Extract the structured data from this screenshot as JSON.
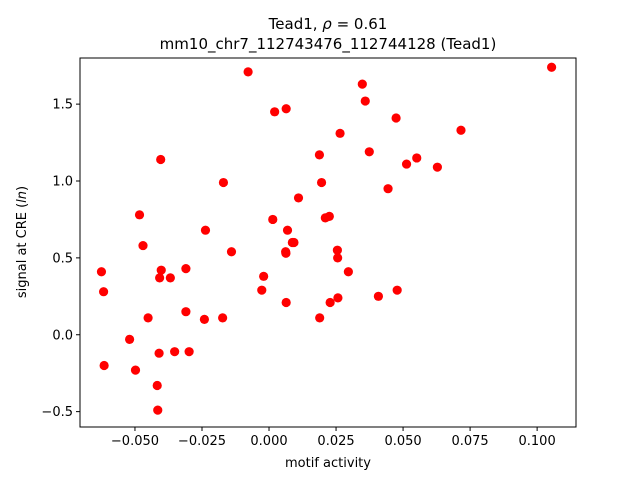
{
  "chart_data": {
    "type": "scatter",
    "title_line1_prefix": "Tead1, ",
    "title_line1_rho": "ρ",
    "title_line1_suffix": " = 0.61",
    "title_line2": "mm10_chr7_112743476_112744128 (Tead1)",
    "xlabel": "motif activity",
    "ylabel_prefix": "signal at CRE (",
    "ylabel_italic": "ln",
    "ylabel_suffix": ")",
    "xlim": [
      -0.0705,
      0.1145
    ],
    "ylim": [
      -0.6,
      1.8
    ],
    "xticks": [
      -0.05,
      -0.025,
      0.0,
      0.025,
      0.05,
      0.075,
      0.1
    ],
    "xtick_labels": [
      "−0.050",
      "−0.025",
      "0.000",
      "0.025",
      "0.050",
      "0.075",
      "0.100"
    ],
    "yticks": [
      -0.5,
      0.0,
      0.5,
      1.0,
      1.5
    ],
    "ytick_labels": [
      "−0.5",
      "0.0",
      "0.5",
      "1.0",
      "1.5"
    ],
    "marker_color": "#ff0000",
    "grid": false,
    "points": [
      {
        "x": 0.1054,
        "y": 1.74
      },
      {
        "x": -0.0078,
        "y": 1.71
      },
      {
        "x": 0.0348,
        "y": 1.63
      },
      {
        "x": 0.0359,
        "y": 1.52
      },
      {
        "x": 0.0021,
        "y": 1.45
      },
      {
        "x": 0.0064,
        "y": 1.47
      },
      {
        "x": 0.0474,
        "y": 1.41
      },
      {
        "x": 0.0716,
        "y": 1.33
      },
      {
        "x": 0.0265,
        "y": 1.31
      },
      {
        "x": 0.0374,
        "y": 1.19
      },
      {
        "x": 0.0188,
        "y": 1.17
      },
      {
        "x": 0.0551,
        "y": 1.15
      },
      {
        "x": -0.0404,
        "y": 1.14
      },
      {
        "x": 0.0513,
        "y": 1.11
      },
      {
        "x": 0.0628,
        "y": 1.09
      },
      {
        "x": -0.017,
        "y": 0.99
      },
      {
        "x": 0.0196,
        "y": 0.99
      },
      {
        "x": 0.0444,
        "y": 0.95
      },
      {
        "x": 0.011,
        "y": 0.89
      },
      {
        "x": -0.0483,
        "y": 0.78
      },
      {
        "x": 0.0225,
        "y": 0.77
      },
      {
        "x": 0.021,
        "y": 0.76
      },
      {
        "x": 0.0014,
        "y": 0.75
      },
      {
        "x": -0.0237,
        "y": 0.68
      },
      {
        "x": 0.0069,
        "y": 0.68
      },
      {
        "x": 0.0087,
        "y": 0.6
      },
      {
        "x": 0.0093,
        "y": 0.6
      },
      {
        "x": -0.047,
        "y": 0.58
      },
      {
        "x": 0.0255,
        "y": 0.55
      },
      {
        "x": -0.014,
        "y": 0.54
      },
      {
        "x": 0.0062,
        "y": 0.54
      },
      {
        "x": 0.0063,
        "y": 0.53
      },
      {
        "x": 0.0256,
        "y": 0.5
      },
      {
        "x": -0.031,
        "y": 0.43
      },
      {
        "x": -0.0402,
        "y": 0.42
      },
      {
        "x": 0.0296,
        "y": 0.41
      },
      {
        "x": -0.0625,
        "y": 0.41
      },
      {
        "x": -0.002,
        "y": 0.38
      },
      {
        "x": -0.0408,
        "y": 0.37
      },
      {
        "x": -0.0368,
        "y": 0.37
      },
      {
        "x": -0.0027,
        "y": 0.29
      },
      {
        "x": 0.0478,
        "y": 0.29
      },
      {
        "x": -0.0617,
        "y": 0.28
      },
      {
        "x": 0.0408,
        "y": 0.25
      },
      {
        "x": 0.0257,
        "y": 0.24
      },
      {
        "x": 0.0064,
        "y": 0.21
      },
      {
        "x": 0.0228,
        "y": 0.21
      },
      {
        "x": -0.031,
        "y": 0.15
      },
      {
        "x": 0.0189,
        "y": 0.11
      },
      {
        "x": -0.0451,
        "y": 0.11
      },
      {
        "x": -0.0173,
        "y": 0.11
      },
      {
        "x": -0.0241,
        "y": 0.1
      },
      {
        "x": -0.052,
        "y": -0.03
      },
      {
        "x": -0.0352,
        "y": -0.11
      },
      {
        "x": -0.0298,
        "y": -0.11
      },
      {
        "x": -0.041,
        "y": -0.12
      },
      {
        "x": -0.0615,
        "y": -0.2
      },
      {
        "x": -0.0498,
        "y": -0.23
      },
      {
        "x": -0.0417,
        "y": -0.33
      },
      {
        "x": -0.0415,
        "y": -0.49
      }
    ]
  }
}
